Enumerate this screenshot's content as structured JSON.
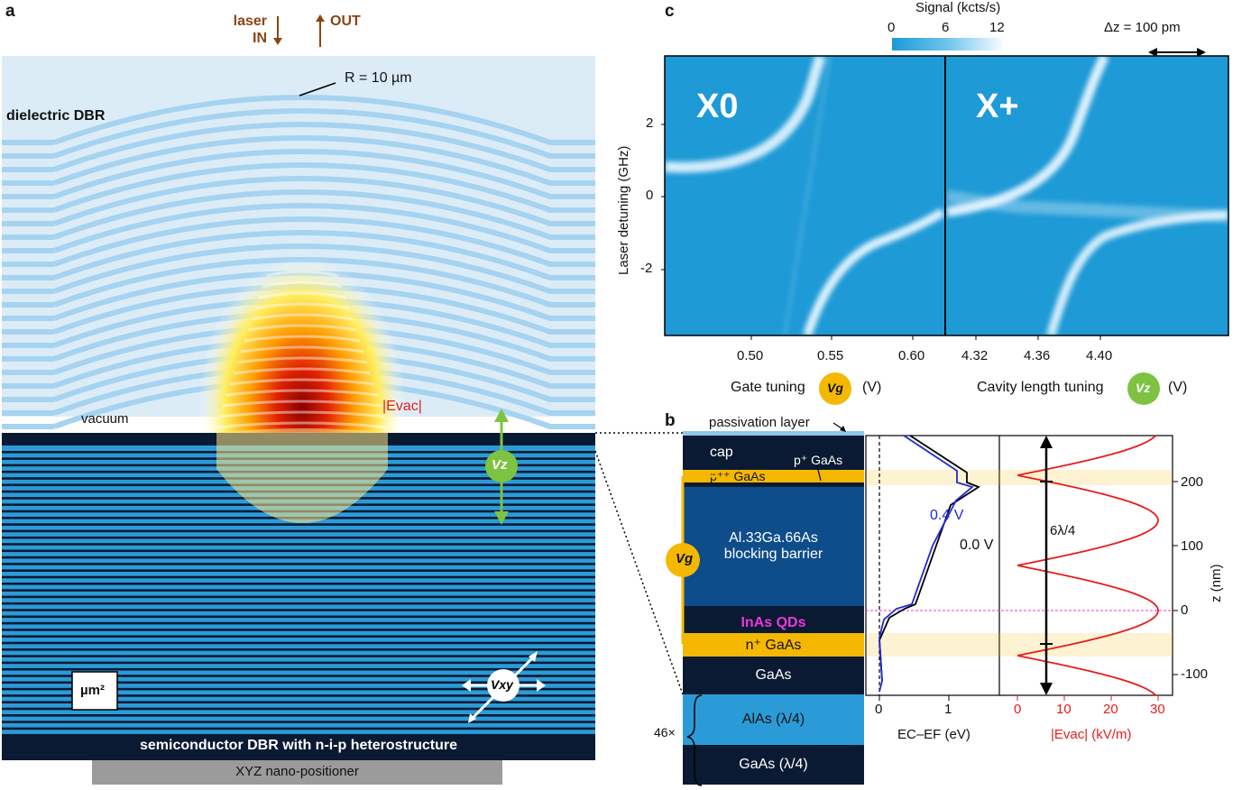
{
  "panels": {
    "a": "a",
    "b": "b",
    "c": "c"
  },
  "panel_a": {
    "laser_in_line1": "laser",
    "laser_in_line2": "IN",
    "out_label": "OUT",
    "radius_label": "R = 10 µm",
    "dielectric_dbr": "dielectric DBR",
    "vacuum": "vacuum",
    "evac_label": "|Evac|",
    "vz": "Vz",
    "vxy": "Vxy",
    "area_box": "µm²",
    "semiconductor_dbr": "semiconductor DBR with n-i-p heterostructure",
    "positioner": "XYZ nano-positioner"
  },
  "panel_b": {
    "layers": {
      "passivation": "passivation layer",
      "cap": "cap",
      "p_gaas": "p⁺ GaAs",
      "ppp_gaas": "p⁺⁺ GaAs",
      "barrier_line1": "Al.33Ga.66As",
      "barrier_line2": "blocking barrier",
      "qds": "InAs QDs",
      "n_gaas": "n⁺ GaAs",
      "gaas": "GaAs",
      "alas": "AlAs (λ/4)",
      "gaas_q": "GaAs (λ/4)"
    },
    "repeat": "46×",
    "vg": "Vg",
    "band_axis_label": "EC–EF (eV)",
    "band_ticks": [
      "0",
      "1"
    ],
    "curve_04": "0.4 V",
    "curve_00": "0.0 V",
    "span_label": "6λ/4",
    "field_axis_label": "|Evac| (kV/m)",
    "field_ticks": [
      "0",
      "10",
      "20",
      "30"
    ],
    "z_axis_label": "z (nm)",
    "z_ticks": [
      "200",
      "100",
      "0",
      "-100"
    ]
  },
  "panel_c": {
    "colorbar_title": "Signal (kcts/s)",
    "colorbar_ticks": [
      "0",
      "6",
      "12"
    ],
    "dz_label": "Δz = 100 pm",
    "ylabel": "Laser detuning (GHz)",
    "yticks": [
      "2",
      "0",
      "-2"
    ],
    "left": {
      "label": "X0",
      "xticks": [
        "0.50",
        "0.55",
        "0.60"
      ],
      "xlabel": "Gate tuning",
      "badge": "Vg",
      "unit": "(V)"
    },
    "right": {
      "label": "X+",
      "xticks": [
        "4.32",
        "4.36",
        "4.40"
      ],
      "xlabel": "Cavity length tuning",
      "badge": "Vz",
      "unit": "(V)"
    }
  },
  "colors": {
    "blue_bg": "#2b9bd8",
    "dbr_dark": "#0a1a33",
    "gate_yellow": "#f5b800",
    "vz_green": "#7ec242",
    "curve_blue": "#1f2bd0",
    "field_red": "#e81c1c",
    "qd_magenta": "#e83ad8"
  }
}
